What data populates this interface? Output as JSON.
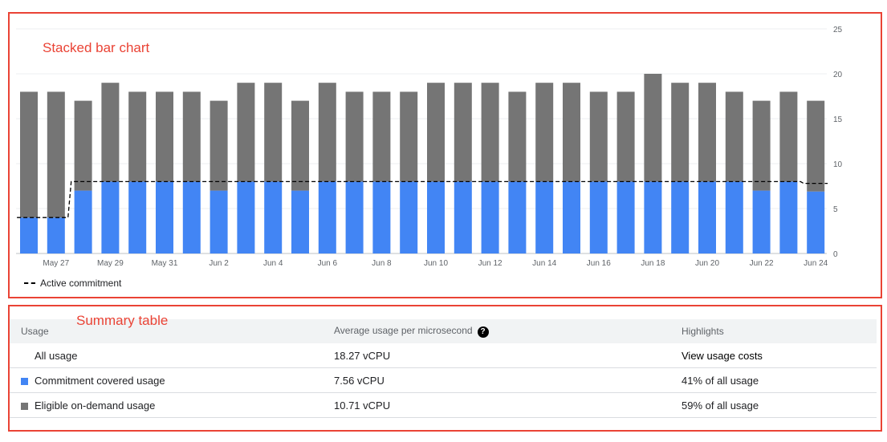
{
  "annotations": {
    "chart": "Stacked bar chart",
    "table": "Summary table"
  },
  "chart_data": {
    "type": "bar",
    "stacked": true,
    "categories": [
      "May 26",
      "May 27",
      "May 28",
      "May 29",
      "May 30",
      "May 31",
      "Jun 1",
      "Jun 2",
      "Jun 3",
      "Jun 4",
      "Jun 5",
      "Jun 6",
      "Jun 7",
      "Jun 8",
      "Jun 9",
      "Jun 10",
      "Jun 11",
      "Jun 12",
      "Jun 13",
      "Jun 14",
      "Jun 15",
      "Jun 16",
      "Jun 17",
      "Jun 18",
      "Jun 19",
      "Jun 20",
      "Jun 21",
      "Jun 22",
      "Jun 23",
      "Jun 24"
    ],
    "x_tick_labels": [
      "May 27",
      "May 29",
      "May 31",
      "Jun 2",
      "Jun 4",
      "Jun 6",
      "Jun 8",
      "Jun 10",
      "Jun 12",
      "Jun 14",
      "Jun 16",
      "Jun 18",
      "Jun 20",
      "Jun 22",
      "Jun 24"
    ],
    "y_ticks": [
      0,
      5,
      10,
      15,
      20,
      25
    ],
    "ylim": [
      0,
      25
    ],
    "grid": true,
    "y_axis_side": "right",
    "series": [
      {
        "key": "covered",
        "color": "#4285f4",
        "values": [
          4,
          4,
          7,
          8,
          8,
          8,
          8,
          7,
          8,
          8,
          7,
          8,
          8,
          8,
          8,
          8,
          8,
          8,
          8,
          8,
          8,
          8,
          8,
          8,
          8,
          8,
          8,
          7,
          8,
          6.9
        ]
      },
      {
        "key": "ondemand",
        "color": "#757575",
        "values": [
          14,
          14,
          10,
          11,
          10,
          10,
          10,
          10,
          11,
          11,
          10,
          11,
          10,
          10,
          10,
          11,
          11,
          11,
          10,
          11,
          11,
          10,
          10,
          12,
          11,
          11,
          10,
          10,
          10,
          10.1
        ]
      }
    ],
    "line": {
      "name": "Active commitment",
      "style": "dashed",
      "color": "#000000",
      "values": [
        4,
        4,
        8,
        8,
        8,
        8,
        8,
        8,
        8,
        8,
        8,
        8,
        8,
        8,
        8,
        8,
        8,
        8,
        8,
        8,
        8,
        8,
        8,
        8,
        8,
        8,
        8,
        8,
        8,
        7.8
      ]
    },
    "legend": "bottom-left"
  },
  "table": {
    "headers": [
      "Usage",
      "Average usage per microsecond",
      "Highlights"
    ],
    "help_icon": "question-circle-icon",
    "rows": [
      {
        "label": "All usage",
        "avg": "18.27 vCPU",
        "highlight": "View usage costs",
        "swatch": null
      },
      {
        "label": "Commitment covered usage",
        "avg": "7.56 vCPU",
        "highlight": "41% of all usage",
        "swatch": "#4285f4"
      },
      {
        "label": "Eligible on-demand usage",
        "avg": "10.71 vCPU",
        "highlight": "59% of all usage",
        "swatch": "#757575"
      }
    ]
  }
}
